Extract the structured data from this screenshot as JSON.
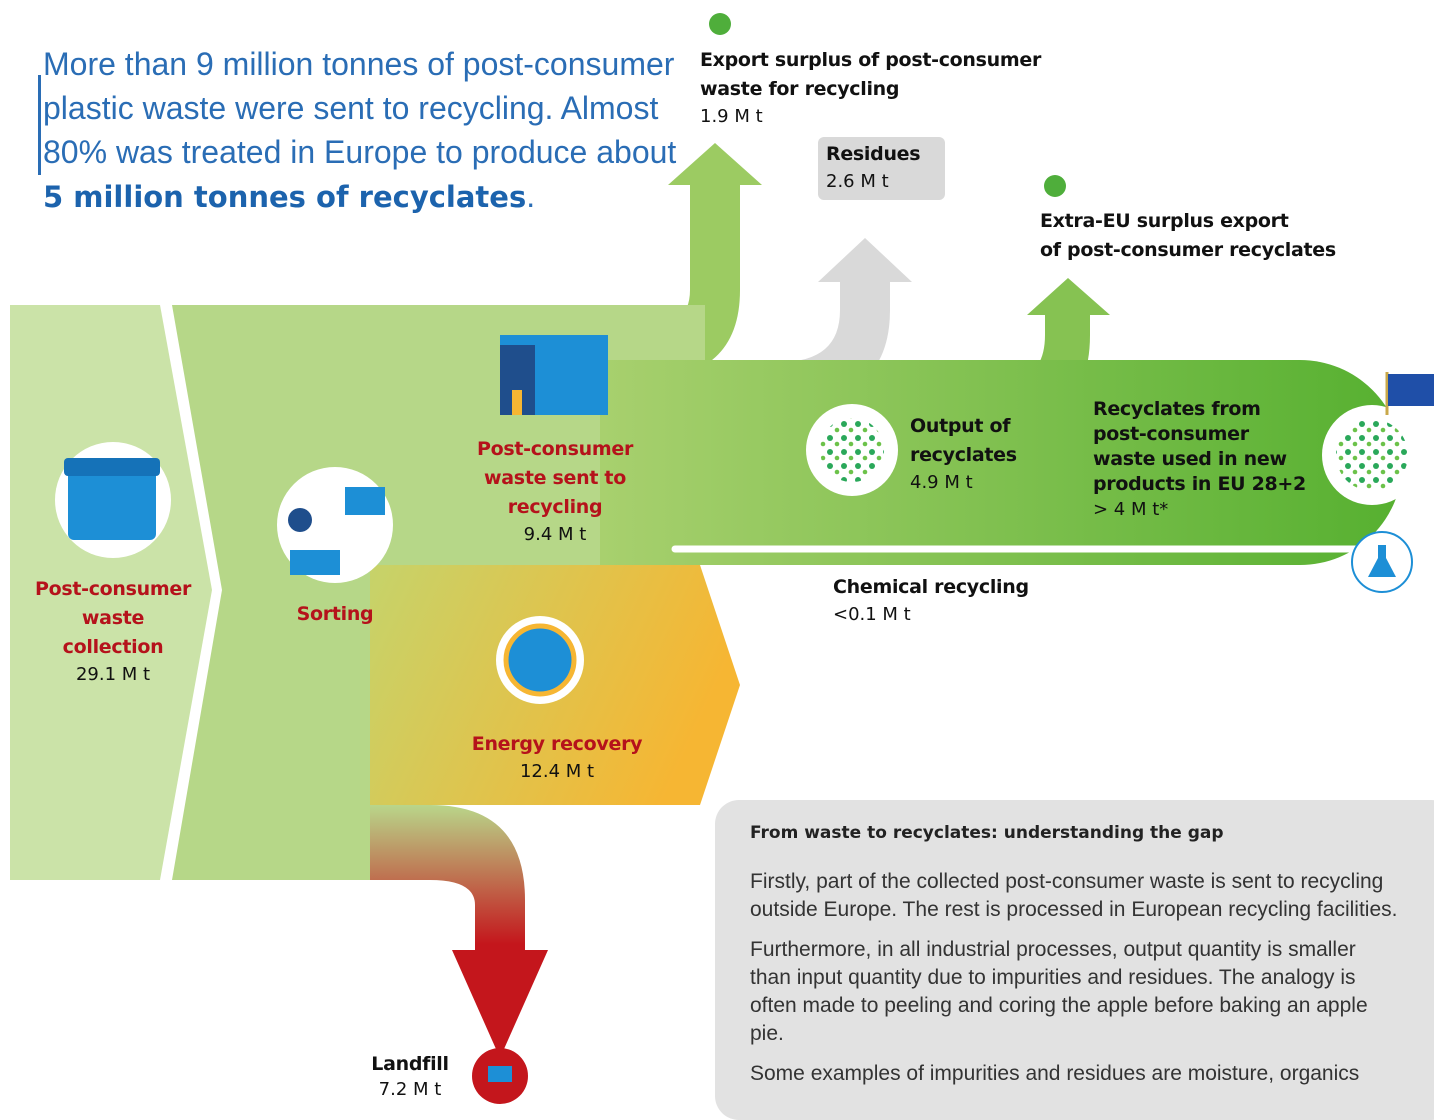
{
  "intro": {
    "lead": "More than 9 million tonnes of post-consumer plastic waste were sent to recycling. Almost 80% was treated in Europe to produce about",
    "highlight": "5 million tonnes of recyclates",
    "end": "."
  },
  "nodes": {
    "collection": {
      "label": [
        "Post-consumer",
        "waste",
        "collection"
      ],
      "value": "29.1 M t"
    },
    "sorting": {
      "label": [
        "Sorting"
      ]
    },
    "recycling": {
      "label": [
        "Post-consumer",
        "waste sent to",
        "recycling"
      ],
      "value": "9.4 M t"
    },
    "export": {
      "label": [
        "Export surplus of post-consumer",
        "waste for recycling"
      ],
      "value": "1.9 M t"
    },
    "residues": {
      "label": [
        "Residues"
      ],
      "value": "2.6 M t"
    },
    "extra_eu": {
      "label": [
        "Extra-EU surplus export",
        "of post-consumer recyclates"
      ]
    },
    "output": {
      "label": [
        "Output of",
        "recyclates"
      ],
      "value": "4.9 M t"
    },
    "eu_use": {
      "label": [
        "Recyclates from",
        "post-consumer",
        "waste used in new",
        "products in EU 28+2"
      ],
      "value": "> 4 M t*"
    },
    "chemical": {
      "label": [
        "Chemical recycling"
      ],
      "value": "<0.1 M t"
    },
    "energy": {
      "label": [
        "Energy recovery"
      ],
      "value": "12.4 M t"
    },
    "landfill": {
      "label": [
        "Landfill"
      ],
      "value": "7.2 M t"
    }
  },
  "info_box": {
    "title": "From waste to recyclates: understanding the gap",
    "paragraphs": [
      "Firstly, part of the collected post-consumer waste is sent to recycling outside Europe. The rest is processed in European recycling facilities.",
      "Furthermore, in all industrial processes, output quantity is smaller than input quantity due to impurities and residues. The analogy is often made to peeling and coring the apple before baking an apple pie.",
      "Some examples of impurities and residues are moisture, organics"
    ]
  }
}
